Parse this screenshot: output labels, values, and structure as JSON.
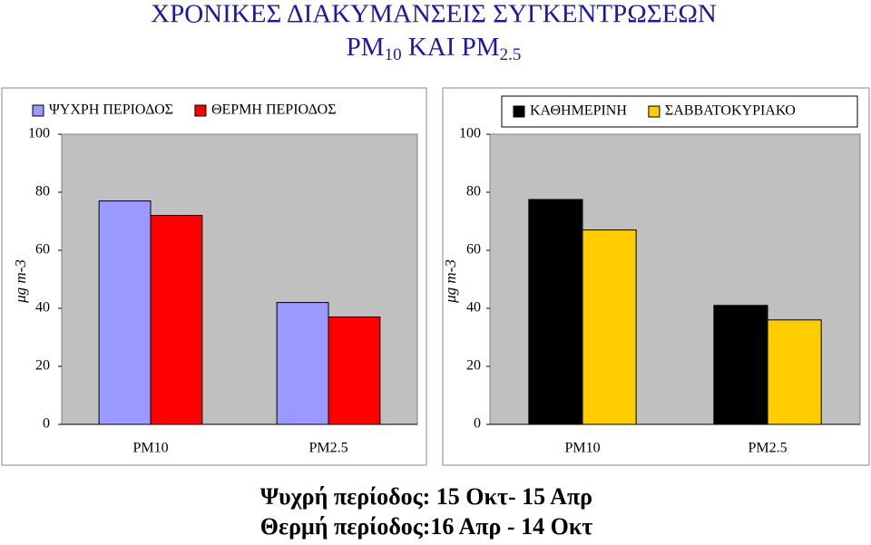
{
  "title": {
    "line1": "ΧΡΟΝΙΚΕΣ ΔΙΑΚΥΜΑΝΣΕΙΣ ΣΥΓΚΕΝΤΡΩΣΕΩΝ",
    "line2_parts": [
      "PM",
      "10",
      " ΚΑΙ PM",
      "2.5"
    ]
  },
  "chart_data": [
    {
      "type": "bar",
      "ylabel": "μg m-3",
      "categories": [
        "PM10",
        "PM2.5"
      ],
      "series": [
        {
          "name": "ΨΥΧΡΗ ΠΕΡΙΟΔΟΣ",
          "color": "#9999ff",
          "values": [
            77,
            42
          ]
        },
        {
          "name": "ΘΕΡΜΗ ΠΕΡΙΟΔΟΣ",
          "color": "#ff0000",
          "values": [
            72,
            37
          ]
        }
      ],
      "ylim": [
        0,
        100
      ],
      "yticks": [
        0,
        20,
        40,
        60,
        80,
        100
      ],
      "grid": false
    },
    {
      "type": "bar",
      "ylabel": "μg m-3",
      "categories": [
        "PM10",
        "PM2.5"
      ],
      "series": [
        {
          "name": "ΚΑΘΗΜΕΡΙΝΗ",
          "color": "#000000",
          "values": [
            77.5,
            41
          ]
        },
        {
          "name": "ΣΑΒΒΑΤΟΚΥΡΙΑΚΟ",
          "color": "#ffcc00",
          "values": [
            67,
            36
          ]
        }
      ],
      "ylim": [
        0,
        100
      ],
      "yticks": [
        0,
        20,
        40,
        60,
        80,
        100
      ],
      "grid": false
    }
  ],
  "notes": [
    "Ψυχρή περίοδος: 15 Οκτ- 15 Απρ",
    "Θερμή περίοδος:16 Απρ - 14 Οκτ"
  ]
}
